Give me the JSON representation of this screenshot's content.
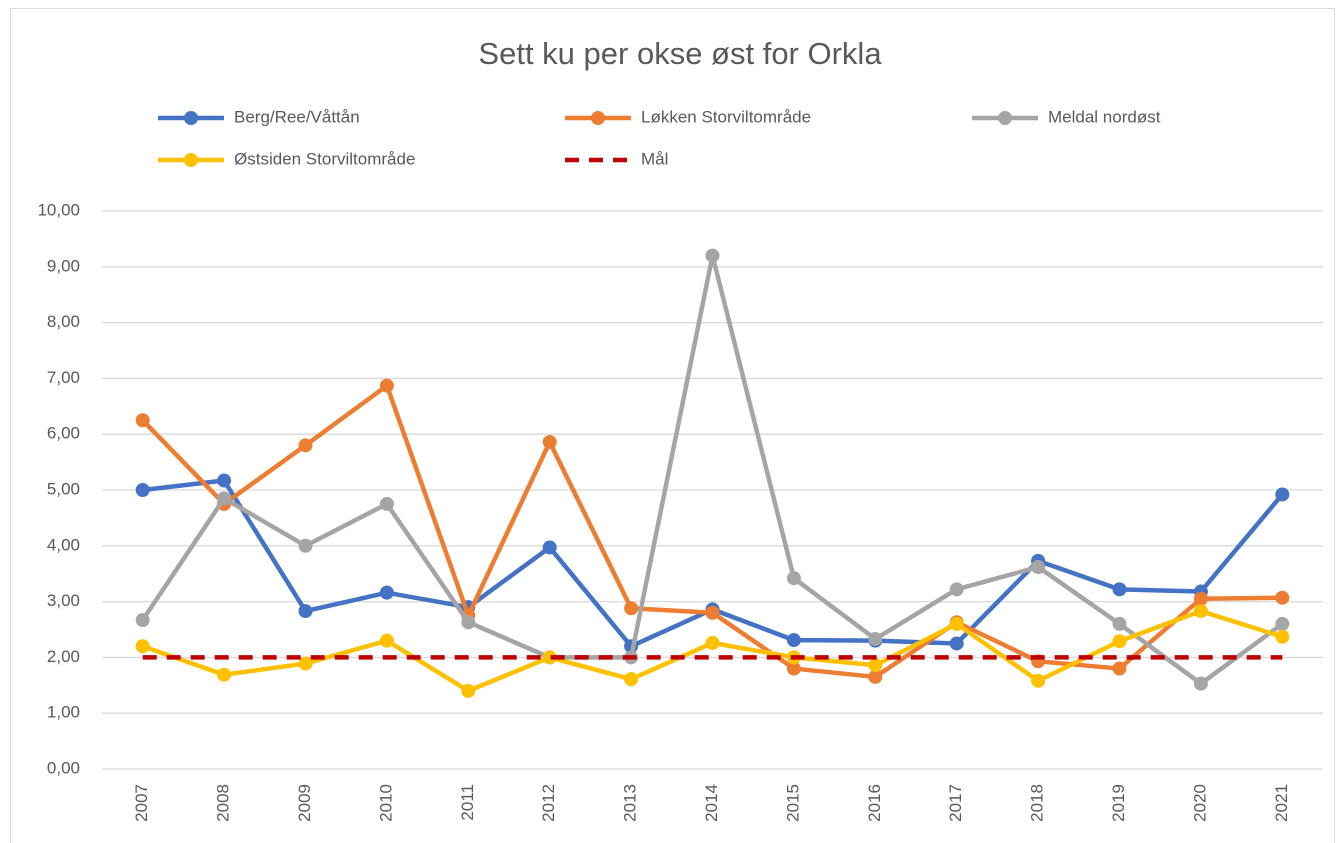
{
  "chart_data": {
    "type": "line",
    "title": "Sett ku per okse øst for Orkla",
    "categories": [
      "2007",
      "2008",
      "2009",
      "2010",
      "2011",
      "2012",
      "2013",
      "2014",
      "2015",
      "2016",
      "2017",
      "2018",
      "2019",
      "2020",
      "2021"
    ],
    "series": [
      {
        "name": "Berg/Ree/Våttån",
        "color": "#4472c4",
        "values": [
          5.0,
          5.17,
          2.83,
          3.16,
          2.9,
          3.97,
          2.2,
          2.86,
          2.31,
          2.3,
          2.25,
          3.73,
          3.22,
          3.18,
          4.92
        ]
      },
      {
        "name": "Løkken Storviltområde",
        "color": "#ed7d31",
        "values": [
          6.25,
          4.75,
          5.8,
          6.87,
          2.75,
          5.86,
          2.88,
          2.8,
          1.8,
          1.65,
          2.63,
          1.93,
          1.8,
          3.05,
          3.07
        ]
      },
      {
        "name": "Meldal nordøst",
        "color": "#a5a5a5",
        "values": [
          2.67,
          4.85,
          4.0,
          4.75,
          2.63,
          2.0,
          2.0,
          9.2,
          3.42,
          2.33,
          3.22,
          3.62,
          2.6,
          1.53,
          2.6
        ]
      },
      {
        "name": "Østsiden Storviltområde",
        "color": "#ffc000",
        "values": [
          2.2,
          1.69,
          1.89,
          2.3,
          1.4,
          2.0,
          1.61,
          2.26,
          2.0,
          1.86,
          2.6,
          1.58,
          2.29,
          2.83,
          2.37
        ]
      },
      {
        "name": "Mål",
        "color": "#c00000",
        "dashed": true,
        "markers": false,
        "values": [
          2,
          2,
          2,
          2,
          2,
          2,
          2,
          2,
          2,
          2,
          2,
          2,
          2,
          2,
          2
        ]
      }
    ],
    "ylim": [
      0,
      10
    ],
    "yticks": [
      {
        "value": 0,
        "label": "0,00"
      },
      {
        "value": 1,
        "label": "1,00"
      },
      {
        "value": 2,
        "label": "2,00"
      },
      {
        "value": 3,
        "label": "3,00"
      },
      {
        "value": 4,
        "label": "4,00"
      },
      {
        "value": 5,
        "label": "5,00"
      },
      {
        "value": 6,
        "label": "6,00"
      },
      {
        "value": 7,
        "label": "7,00"
      },
      {
        "value": 8,
        "label": "8,00"
      },
      {
        "value": 9,
        "label": "9,00"
      },
      {
        "value": 10,
        "label": "10,00"
      }
    ],
    "grid": true,
    "legend": "top"
  }
}
